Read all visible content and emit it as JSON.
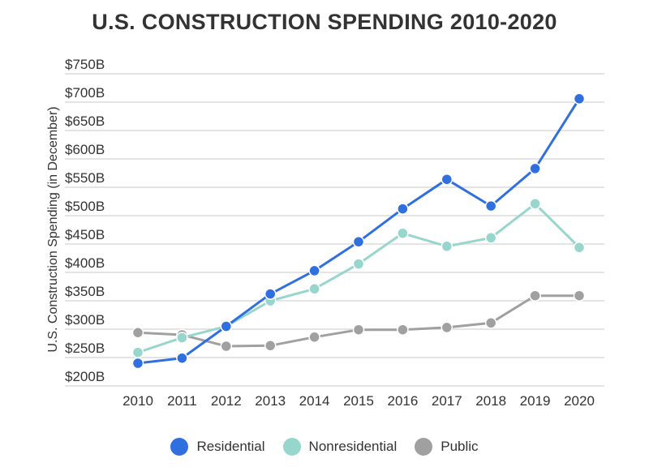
{
  "chart_data": {
    "type": "line",
    "title": "U.S. CONSTRUCTION SPENDING 2010-2020",
    "ylabel": "U.S. Construction Spending (in December)",
    "xlabel": "",
    "categories": [
      "2010",
      "2011",
      "2012",
      "2013",
      "2014",
      "2015",
      "2016",
      "2017",
      "2018",
      "2019",
      "2020"
    ],
    "ylim": [
      200,
      750
    ],
    "yticks": [
      200,
      250,
      300,
      350,
      400,
      450,
      500,
      550,
      600,
      650,
      700,
      750
    ],
    "ytick_labels": [
      "$200B",
      "$250B",
      "$300B",
      "$350B",
      "$400B",
      "$450B",
      "$500B",
      "$550B",
      "$600B",
      "$650B",
      "$700B",
      "$750B"
    ],
    "grid": true,
    "legend_placement": "bottom",
    "series": [
      {
        "name": "Residential",
        "color": "#2f6fe0",
        "values": [
          240,
          249,
          305,
          362,
          403,
          454,
          512,
          564,
          517,
          583,
          706
        ]
      },
      {
        "name": "Nonresidential",
        "color": "#97d6cc",
        "values": [
          259,
          285,
          305,
          350,
          371,
          415,
          469,
          446,
          461,
          521,
          444
        ]
      },
      {
        "name": "Public",
        "color": "#a0a0a0",
        "values": [
          294,
          290,
          270,
          271,
          286,
          299,
          299,
          303,
          311,
          359,
          359
        ]
      }
    ]
  }
}
